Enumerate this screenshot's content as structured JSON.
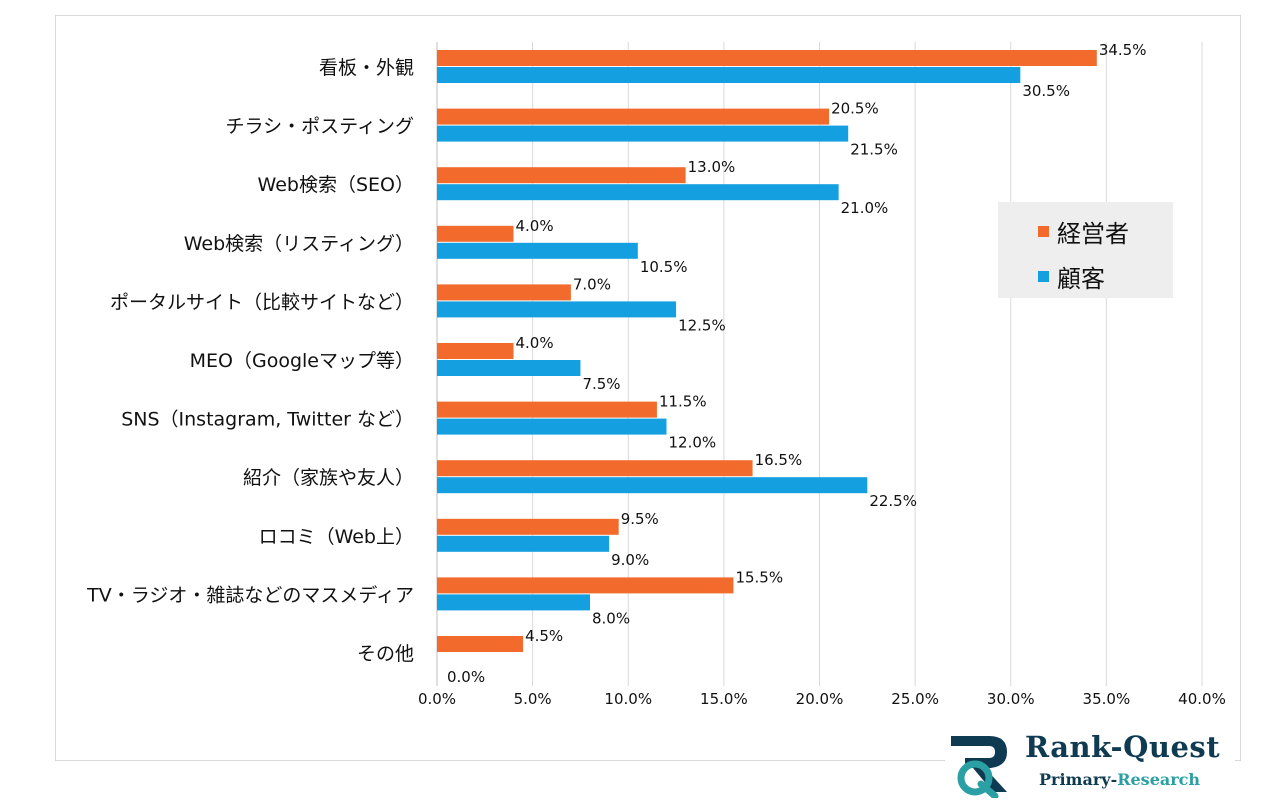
{
  "chart_data": {
    "type": "bar",
    "orientation": "horizontal",
    "categories": [
      "看板・外観",
      "チラシ・ポスティング",
      "Web検索（SEO）",
      "Web検索（リスティング）",
      "ポータルサイト（比較サイトなど）",
      "MEO（Googleマップ等）",
      "SNS（Instagram, Twitter など）",
      "紹介（家族や友人）",
      "ロコミ（Web上）",
      "TV・ラジオ・雑誌などのマスメディア",
      "その他"
    ],
    "series": [
      {
        "name": "経営者",
        "color": "#f26b2c",
        "values": [
          34.5,
          20.5,
          13.0,
          4.0,
          7.0,
          4.0,
          11.5,
          16.5,
          9.5,
          15.5,
          4.5
        ],
        "value_labels": [
          "34.5%",
          "20.5%",
          "13.0%",
          "4.0%",
          "7.0%",
          "4.0%",
          "11.5%",
          "16.5%",
          "9.5%",
          "15.5%",
          "4.5%"
        ]
      },
      {
        "name": "顧客",
        "color": "#14a0e0",
        "values": [
          30.5,
          21.5,
          21.0,
          10.5,
          12.5,
          7.5,
          12.0,
          22.5,
          9.0,
          8.0,
          0.0
        ],
        "value_labels": [
          "30.5%",
          "21.5%",
          "21.0%",
          "10.5%",
          "12.5%",
          "7.5%",
          "12.0%",
          "22.5%",
          "9.0%",
          "8.0%",
          "0.0%"
        ]
      }
    ],
    "xlim": [
      0,
      40
    ],
    "x_ticks": [
      0,
      5,
      10,
      15,
      20,
      25,
      30,
      35,
      40
    ],
    "x_tick_labels": [
      "0.0%",
      "5.0%",
      "10.0%",
      "15.0%",
      "20.0%",
      "25.0%",
      "30.0%",
      "35.0%",
      "40.0%"
    ],
    "grid": "vertical",
    "legend_position": "right",
    "title": "",
    "xlabel": "",
    "ylabel": ""
  },
  "logo": {
    "title": "Rank-Quest",
    "subtitle_prefix": "Primary-",
    "subtitle_accent": "Research"
  }
}
